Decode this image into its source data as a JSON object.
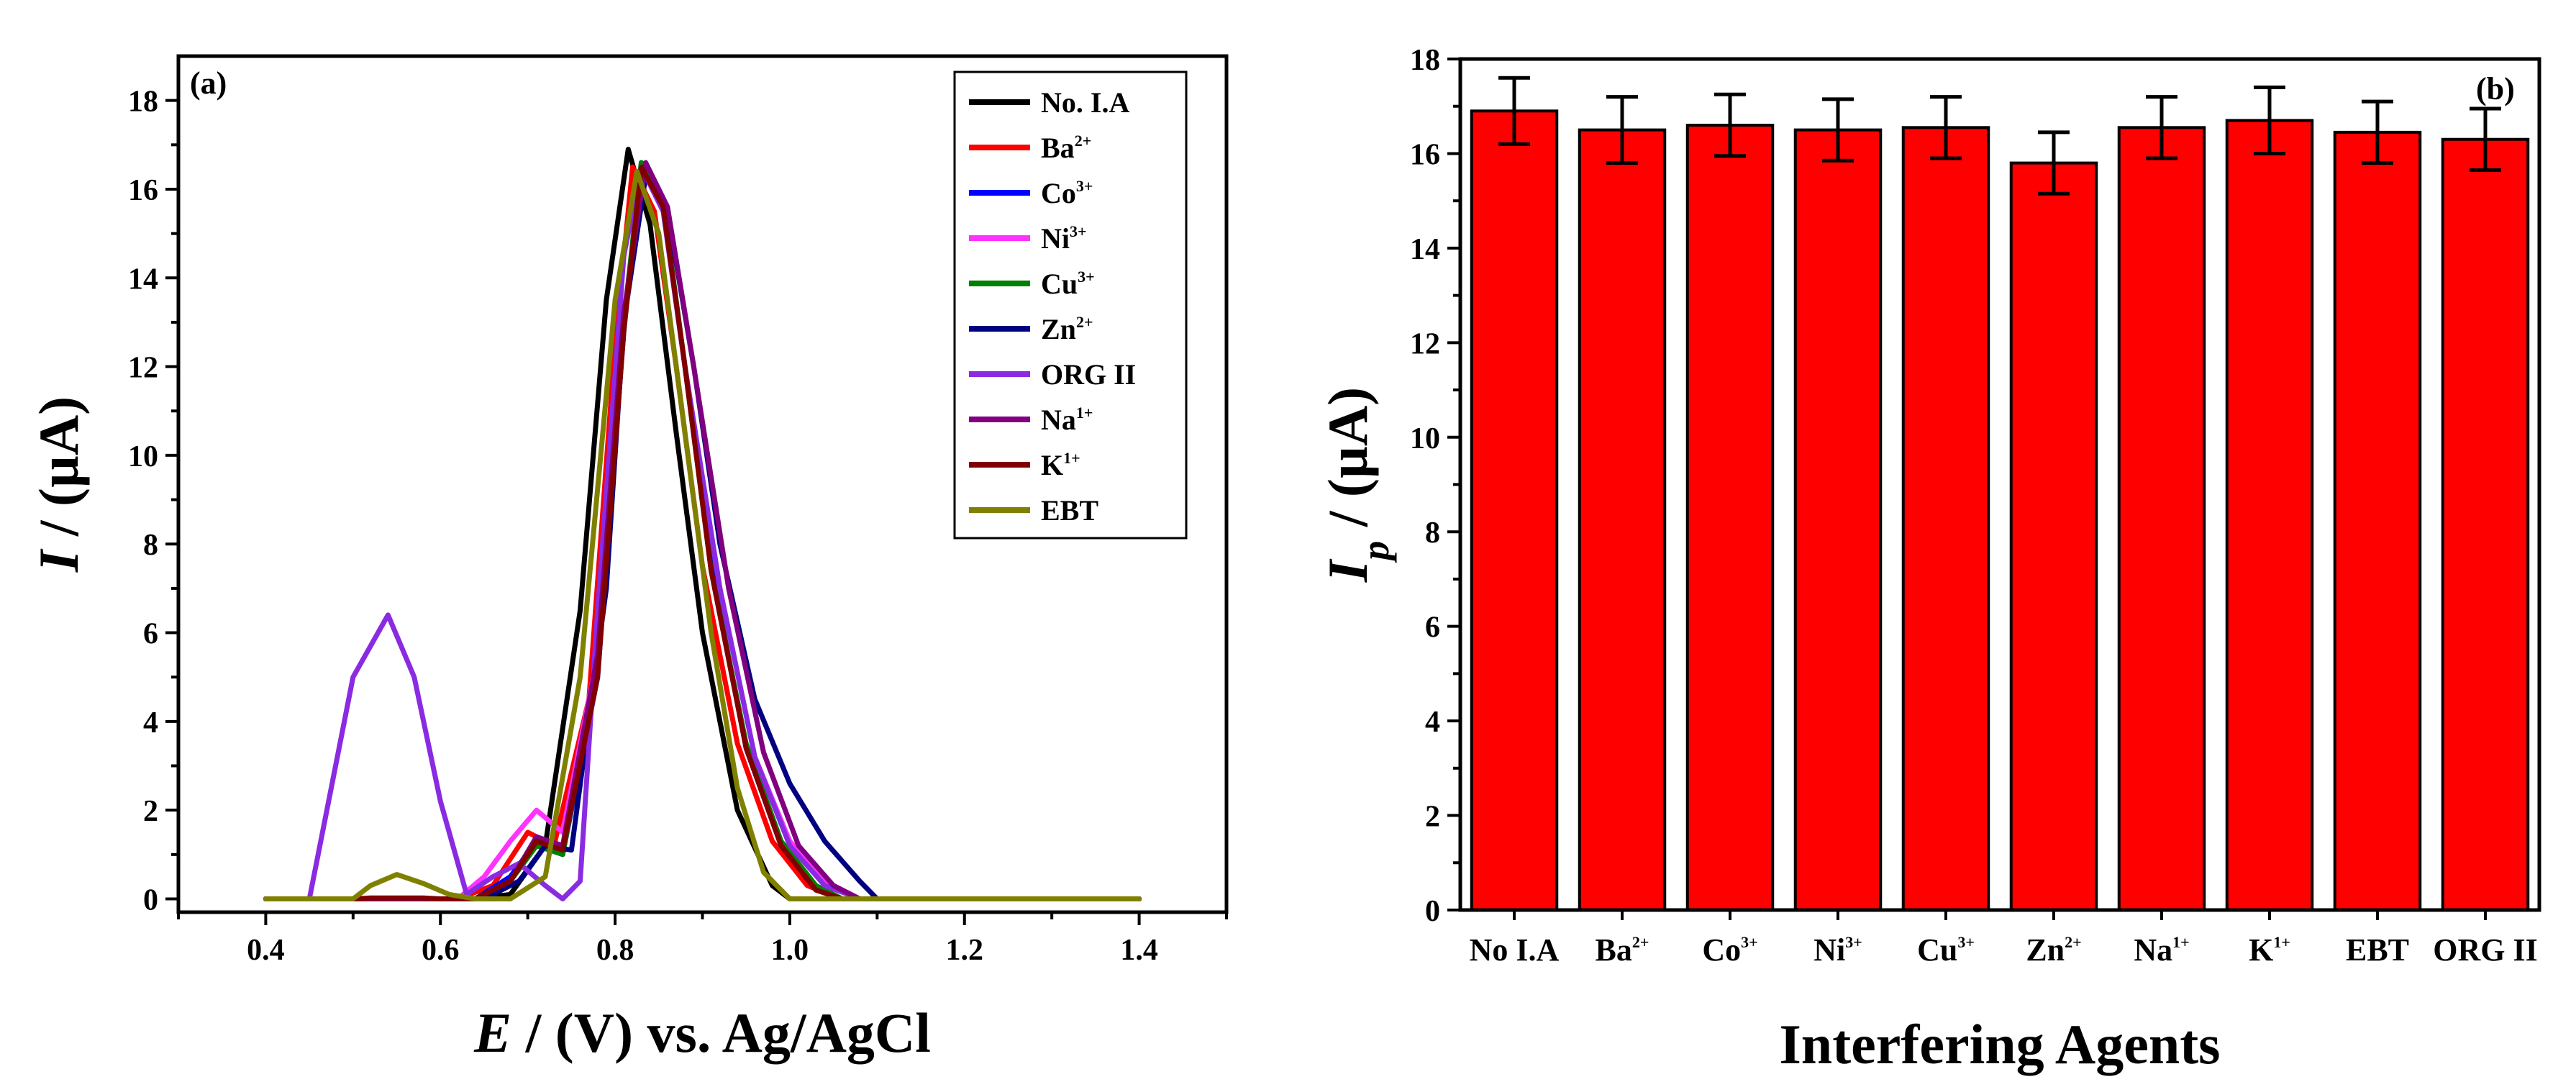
{
  "chart_data": [
    {
      "type": "line",
      "panel_label": "(a)",
      "xlabel_var": "E",
      "xlabel_rest": " / (V) vs. Ag/AgCl",
      "ylabel_var": "I",
      "ylabel_rest": " / (µA)",
      "xlim": [
        0.3,
        1.5
      ],
      "ylim": [
        -0.3,
        19
      ],
      "xticks": [
        "0.4",
        "0.6",
        "0.8",
        "1.0",
        "1.2",
        "1.4"
      ],
      "yticks": [
        "0",
        "2",
        "4",
        "6",
        "8",
        "10",
        "12",
        "14",
        "16",
        "18"
      ],
      "legend_position": "top-right",
      "series": [
        {
          "name": "No. I.A",
          "sup": "",
          "color": "#000000",
          "x": [
            0.4,
            0.6,
            0.64,
            0.68,
            0.72,
            0.76,
            0.79,
            0.815,
            0.84,
            0.87,
            0.9,
            0.94,
            0.98,
            1.0,
            1.4
          ],
          "y": [
            0,
            0,
            0,
            0.1,
            1.2,
            6.5,
            13.5,
            16.9,
            15.2,
            10.5,
            6.0,
            2.0,
            0.3,
            0,
            0
          ]
        },
        {
          "name": "Ba",
          "sup": "2+",
          "color": "#ff0000",
          "x": [
            0.4,
            0.62,
            0.66,
            0.7,
            0.73,
            0.77,
            0.8,
            0.82,
            0.845,
            0.87,
            0.9,
            0.94,
            0.98,
            1.02,
            1.06,
            1.4
          ],
          "y": [
            0,
            0,
            0.3,
            1.5,
            1.2,
            4.5,
            12.5,
            16.5,
            15.5,
            12.0,
            7.5,
            3.5,
            1.3,
            0.3,
            0,
            0
          ]
        },
        {
          "name": "Co",
          "sup": "3+",
          "color": "#0000ff",
          "x": [
            0.4,
            0.64,
            0.68,
            0.71,
            0.74,
            0.78,
            0.81,
            0.83,
            0.855,
            0.88,
            0.91,
            0.95,
            0.99,
            1.03,
            1.06,
            1.4
          ],
          "y": [
            0,
            0,
            0.5,
            1.3,
            1.0,
            5.0,
            12.8,
            16.6,
            15.6,
            12.0,
            7.5,
            3.4,
            1.2,
            0.2,
            0,
            0
          ]
        },
        {
          "name": "Ni",
          "sup": "3+",
          "color": "#ff33ff",
          "x": [
            0.4,
            0.62,
            0.65,
            0.68,
            0.71,
            0.74,
            0.78,
            0.81,
            0.83,
            0.855,
            0.88,
            0.92,
            0.96,
            1.0,
            1.04,
            1.08,
            1.4
          ],
          "y": [
            0,
            0,
            0.5,
            1.3,
            2.0,
            1.5,
            5.5,
            13.0,
            16.5,
            15.6,
            12.0,
            7.0,
            3.2,
            1.3,
            0.4,
            0,
            0
          ]
        },
        {
          "name": "Cu",
          "sup": "3+",
          "color": "#008000",
          "x": [
            0.4,
            0.64,
            0.68,
            0.71,
            0.74,
            0.78,
            0.81,
            0.83,
            0.855,
            0.88,
            0.91,
            0.95,
            0.99,
            1.03,
            1.06,
            1.4
          ],
          "y": [
            0,
            0,
            0.4,
            1.2,
            1.0,
            5.2,
            13.0,
            16.6,
            15.7,
            12.0,
            7.4,
            3.5,
            1.3,
            0.3,
            0,
            0
          ]
        },
        {
          "name": "Zn",
          "sup": "2+",
          "color": "#000080",
          "x": [
            0.4,
            0.65,
            0.69,
            0.72,
            0.75,
            0.79,
            0.81,
            0.835,
            0.86,
            0.89,
            0.92,
            0.96,
            1.0,
            1.04,
            1.08,
            1.1,
            1.4
          ],
          "y": [
            0,
            0,
            0.4,
            1.2,
            1.1,
            7.0,
            13.0,
            16.3,
            15.5,
            12.0,
            8.0,
            4.5,
            2.6,
            1.3,
            0.4,
            0,
            0
          ]
        },
        {
          "name": "ORG II",
          "sup": "",
          "color": "#8a2be2",
          "x": [
            0.4,
            0.45,
            0.47,
            0.5,
            0.54,
            0.57,
            0.6,
            0.63,
            0.66,
            0.69,
            0.72,
            0.74,
            0.76,
            0.78,
            0.81,
            0.83,
            0.855,
            0.88,
            0.92,
            0.96,
            1.0,
            1.04,
            1.08,
            1.4
          ],
          "y": [
            0,
            0,
            2.0,
            5.0,
            6.4,
            5.0,
            2.2,
            0.1,
            0.5,
            0.8,
            0.3,
            0,
            0.4,
            6.5,
            14.5,
            16.5,
            15.5,
            12.0,
            7.0,
            3.2,
            1.2,
            0.3,
            0,
            0
          ]
        },
        {
          "name": "Na",
          "sup": "1+",
          "color": "#800080",
          "x": [
            0.4,
            0.64,
            0.68,
            0.71,
            0.74,
            0.78,
            0.81,
            0.835,
            0.86,
            0.89,
            0.93,
            0.97,
            1.01,
            1.05,
            1.08,
            1.4
          ],
          "y": [
            0,
            0,
            0.4,
            1.4,
            1.2,
            5.5,
            13.2,
            16.6,
            15.6,
            12.0,
            7.0,
            3.3,
            1.2,
            0.3,
            0,
            0
          ]
        },
        {
          "name": "K",
          "sup": "1+",
          "color": "#800000",
          "x": [
            0.4,
            0.5,
            0.52,
            0.58,
            0.6,
            0.64,
            0.68,
            0.71,
            0.74,
            0.78,
            0.81,
            0.83,
            0.855,
            0.88,
            0.91,
            0.95,
            0.99,
            1.03,
            1.06,
            1.4
          ],
          "y": [
            0,
            0,
            0.02,
            0.02,
            0,
            0,
            0.4,
            1.3,
            1.1,
            5.0,
            12.8,
            16.5,
            15.6,
            12.0,
            7.4,
            3.4,
            1.2,
            0.2,
            0,
            0
          ]
        },
        {
          "name": "EBT",
          "sup": "",
          "color": "#808000",
          "x": [
            0.4,
            0.5,
            0.52,
            0.55,
            0.58,
            0.61,
            0.64,
            0.68,
            0.72,
            0.76,
            0.8,
            0.825,
            0.85,
            0.88,
            0.91,
            0.94,
            0.97,
            1.0,
            1.4
          ],
          "y": [
            0,
            0,
            0.3,
            0.55,
            0.35,
            0.1,
            0,
            0,
            0.5,
            5.0,
            13.5,
            16.4,
            15.0,
            10.5,
            6.0,
            2.5,
            0.6,
            0,
            0
          ]
        }
      ]
    },
    {
      "type": "bar",
      "panel_label": "(b)",
      "xlabel": "Interfering Agents",
      "ylabel_var": "I",
      "ylabel_sub": "p",
      "ylabel_rest": " / (µA)",
      "ylim": [
        0,
        18
      ],
      "yticks": [
        "0",
        "2",
        "4",
        "6",
        "8",
        "10",
        "12",
        "14",
        "16",
        "18"
      ],
      "bar_color": "#ff0000",
      "categories": [
        {
          "label": "No I.A",
          "sup": ""
        },
        {
          "label": "Ba",
          "sup": "2+"
        },
        {
          "label": "Co",
          "sup": "3+"
        },
        {
          "label": "Ni",
          "sup": "3+"
        },
        {
          "label": "Cu",
          "sup": "3+"
        },
        {
          "label": "Zn",
          "sup": "2+"
        },
        {
          "label": "Na",
          "sup": "1+"
        },
        {
          "label": "K",
          "sup": "1+"
        },
        {
          "label": "EBT",
          "sup": ""
        },
        {
          "label": "ORG II",
          "sup": ""
        }
      ],
      "values": [
        16.9,
        16.5,
        16.6,
        16.5,
        16.55,
        15.8,
        16.55,
        16.7,
        16.45,
        16.3
      ],
      "errors": [
        0.7,
        0.7,
        0.65,
        0.65,
        0.65,
        0.65,
        0.65,
        0.7,
        0.65,
        0.65
      ]
    }
  ]
}
